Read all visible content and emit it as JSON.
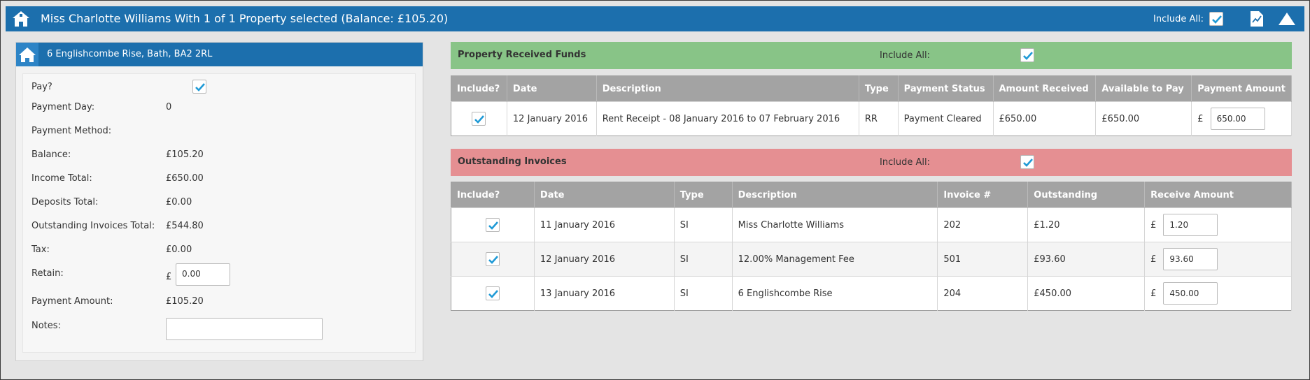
{
  "header": {
    "title": "Miss Charlotte Williams With 1 of 1 Property selected (Balance: £105.20)",
    "include_all_label": "Include All:",
    "include_all_checked": true,
    "home_icon": "home-icon",
    "report_icon": "document-chart-icon",
    "collapse_icon": "triangle-up-icon"
  },
  "property": {
    "address": "6 Englishcombe Rise, Bath, BA2 2RL",
    "pay_label": "Pay?",
    "pay_checked": true,
    "payment_day_label": "Payment Day:",
    "payment_day": "0",
    "payment_method_label": "Payment Method:",
    "payment_method": "",
    "balance_label": "Balance:",
    "balance": "£105.20",
    "income_total_label": "Income Total:",
    "income_total": "£650.00",
    "deposits_total_label": "Deposits Total:",
    "deposits_total": "£0.00",
    "outstanding_total_label": "Outstanding Invoices Total:",
    "outstanding_total": "£544.80",
    "tax_label": "Tax:",
    "tax": "£0.00",
    "retain_label": "Retain:",
    "retain_currency": "£",
    "retain_value": "0.00",
    "payment_amount_label": "Payment Amount:",
    "payment_amount": "£105.20",
    "notes_label": "Notes:",
    "notes_value": ""
  },
  "funds": {
    "title": "Property Received Funds",
    "include_all_label": "Include All:",
    "include_all_checked": true,
    "headers": [
      "Include?",
      "Date",
      "Description",
      "Type",
      "Payment Status",
      "Amount Received",
      "Available to Pay",
      "Payment Amount"
    ],
    "rows": [
      {
        "include": true,
        "date": "12 January 2016",
        "description": "Rent Receipt - 08 January 2016 to 07 February 2016",
        "type": "RR",
        "status": "Payment Cleared",
        "amount_received": "£650.00",
        "available": "£650.00",
        "currency": "£",
        "payment_amount": "650.00"
      }
    ]
  },
  "invoices": {
    "title": "Outstanding Invoices",
    "include_all_label": "Include All:",
    "include_all_checked": true,
    "headers": [
      "Include?",
      "Date",
      "Type",
      "Description",
      "Invoice #",
      "Outstanding",
      "Receive Amount"
    ],
    "rows": [
      {
        "include": true,
        "date": "11 January 2016",
        "type": "SI",
        "description": "Miss Charlotte Williams",
        "invoice": "202",
        "outstanding": "£1.20",
        "currency": "£",
        "receive": "1.20"
      },
      {
        "include": true,
        "date": "12 January 2016",
        "type": "SI",
        "description": "12.00% Management Fee",
        "invoice": "501",
        "outstanding": "£93.60",
        "currency": "£",
        "receive": "93.60"
      },
      {
        "include": true,
        "date": "13 January 2016",
        "type": "SI",
        "description": "6 Englishcombe Rise",
        "invoice": "204",
        "outstanding": "£450.00",
        "currency": "£",
        "receive": "450.00"
      }
    ]
  },
  "colors": {
    "header_blue": "#1c6fad",
    "funds_green": "#88c487",
    "invoices_red": "#e58f92",
    "check_blue": "#1f9ad6"
  }
}
